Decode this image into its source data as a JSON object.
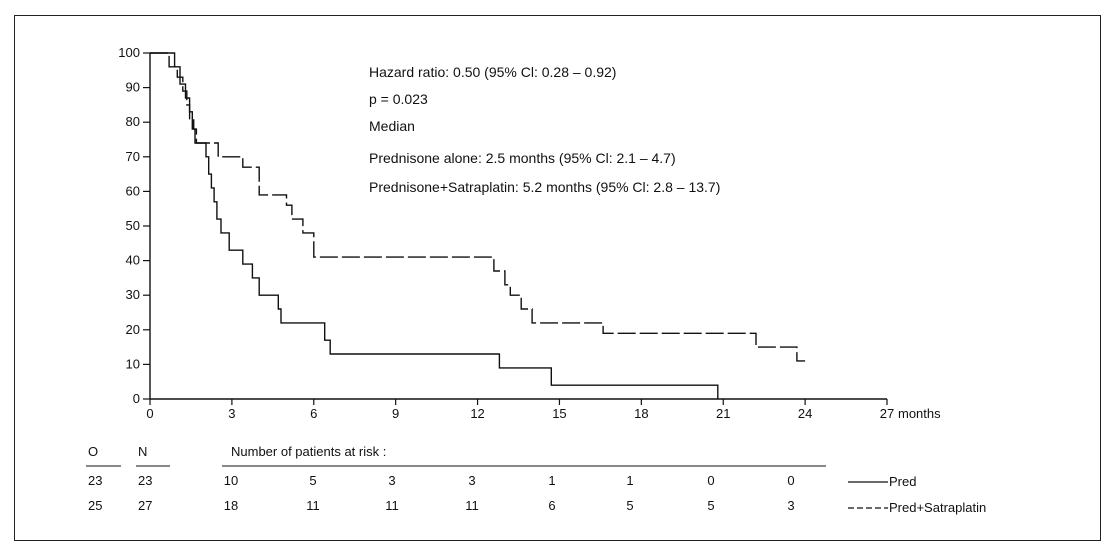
{
  "chart_data": {
    "type": "line",
    "title": "",
    "xlabel": "months",
    "ylabel": "",
    "xlim": [
      0,
      27
    ],
    "ylim": [
      0,
      100
    ],
    "x_ticks": [
      0,
      3,
      6,
      9,
      12,
      15,
      18,
      21,
      24,
      27
    ],
    "y_ticks": [
      0,
      10,
      20,
      30,
      40,
      50,
      60,
      70,
      80,
      90,
      100
    ],
    "grid": false,
    "annotations": [
      "Hazard ratio: 0.50 (95% Cl: 0.28 – 0.92)",
      "p = 0.023",
      "Median",
      "Prednisone alone: 2.5 months (95% Cl: 2.1 – 4.7)",
      "Prednisone+Satraplatin: 5.2 months (95% Cl: 2.8 – 13.7)"
    ],
    "series": [
      {
        "name": "Pred",
        "style": "solid",
        "color": "#111111",
        "points": [
          [
            0,
            100
          ],
          [
            0.9,
            100
          ],
          [
            0.9,
            96
          ],
          [
            1.1,
            96
          ],
          [
            1.1,
            91
          ],
          [
            1.3,
            91
          ],
          [
            1.3,
            87
          ],
          [
            1.45,
            87
          ],
          [
            1.45,
            83
          ],
          [
            1.55,
            83
          ],
          [
            1.55,
            78
          ],
          [
            1.65,
            78
          ],
          [
            1.65,
            74
          ],
          [
            2.05,
            74
          ],
          [
            2.05,
            70
          ],
          [
            2.15,
            70
          ],
          [
            2.15,
            65
          ],
          [
            2.25,
            65
          ],
          [
            2.25,
            61
          ],
          [
            2.35,
            61
          ],
          [
            2.35,
            57
          ],
          [
            2.45,
            57
          ],
          [
            2.45,
            52
          ],
          [
            2.6,
            52
          ],
          [
            2.6,
            48
          ],
          [
            2.9,
            48
          ],
          [
            2.9,
            43
          ],
          [
            3.4,
            43
          ],
          [
            3.4,
            39
          ],
          [
            3.75,
            39
          ],
          [
            3.75,
            35
          ],
          [
            4.0,
            35
          ],
          [
            4.0,
            30
          ],
          [
            4.7,
            30
          ],
          [
            4.7,
            26
          ],
          [
            4.8,
            26
          ],
          [
            4.8,
            22
          ],
          [
            6.4,
            22
          ],
          [
            6.4,
            17
          ],
          [
            6.6,
            17
          ],
          [
            6.6,
            13
          ],
          [
            12.8,
            13
          ],
          [
            12.8,
            9
          ],
          [
            14.7,
            9
          ],
          [
            14.7,
            4
          ],
          [
            20.8,
            4
          ],
          [
            20.8,
            0
          ]
        ]
      },
      {
        "name": "Pred+Satraplatin",
        "style": "dashed",
        "color": "#111111",
        "points": [
          [
            0,
            100
          ],
          [
            0.7,
            100
          ],
          [
            0.7,
            96
          ],
          [
            1.0,
            96
          ],
          [
            1.0,
            93
          ],
          [
            1.2,
            93
          ],
          [
            1.2,
            89
          ],
          [
            1.35,
            89
          ],
          [
            1.35,
            85
          ],
          [
            1.45,
            85
          ],
          [
            1.45,
            81
          ],
          [
            1.6,
            81
          ],
          [
            1.6,
            78
          ],
          [
            1.7,
            78
          ],
          [
            1.7,
            74
          ],
          [
            2.5,
            74
          ],
          [
            2.5,
            70
          ],
          [
            3.4,
            70
          ],
          [
            3.4,
            67
          ],
          [
            4.0,
            67
          ],
          [
            4.0,
            59
          ],
          [
            5.0,
            59
          ],
          [
            5.0,
            56
          ],
          [
            5.2,
            56
          ],
          [
            5.2,
            52
          ],
          [
            5.6,
            52
          ],
          [
            5.6,
            48
          ],
          [
            6.0,
            48
          ],
          [
            6.0,
            41
          ],
          [
            12.6,
            41
          ],
          [
            12.6,
            37
          ],
          [
            13.0,
            37
          ],
          [
            13.0,
            33
          ],
          [
            13.2,
            33
          ],
          [
            13.2,
            30
          ],
          [
            13.6,
            30
          ],
          [
            13.6,
            26
          ],
          [
            14.0,
            26
          ],
          [
            14.0,
            22
          ],
          [
            16.6,
            22
          ],
          [
            16.6,
            19
          ],
          [
            22.2,
            19
          ],
          [
            22.2,
            15
          ],
          [
            23.7,
            15
          ],
          [
            23.7,
            11
          ],
          [
            24.0,
            11
          ]
        ]
      }
    ],
    "risk_table": {
      "header_o": "O",
      "header_n": "N",
      "title": "Number of patients at risk :",
      "rows": [
        {
          "o": "23",
          "n": "23",
          "counts": [
            "10",
            "5",
            "3",
            "3",
            "1",
            "1",
            "0",
            "0"
          ],
          "legend": "Pred"
        },
        {
          "o": "25",
          "n": "27",
          "counts": [
            "18",
            "11",
            "11",
            "11",
            "6",
            "5",
            "5",
            "3"
          ],
          "legend": "Pred+Satraplatin"
        }
      ]
    }
  }
}
